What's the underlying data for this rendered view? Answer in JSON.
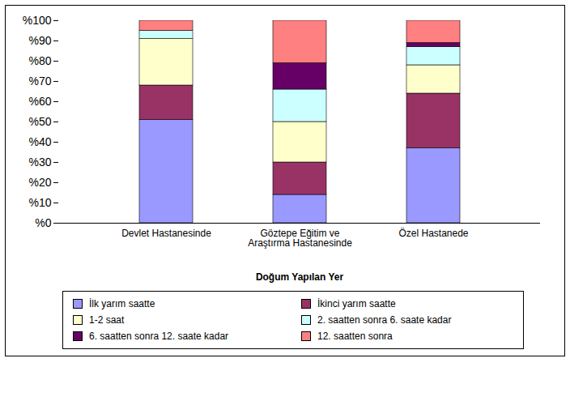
{
  "chart_data": {
    "type": "bar",
    "stacked": true,
    "legend": "bottom",
    "grid": false,
    "x_label": "Doğum Yapılan Yer",
    "categories": [
      "Devlet Hastanesinde",
      "Göztepe Eğitim ve Araştırma Hastanesinde",
      "Özel Hastanede"
    ],
    "ylim": [
      0,
      100
    ],
    "yticks": [
      {
        "value": 0,
        "label": "%0"
      },
      {
        "value": 10,
        "label": "%10"
      },
      {
        "value": 20,
        "label": "%20"
      },
      {
        "value": 30,
        "label": "%30"
      },
      {
        "value": 40,
        "label": "%40"
      },
      {
        "value": 50,
        "label": "%50"
      },
      {
        "value": 60,
        "label": "%60"
      },
      {
        "value": 70,
        "label": "%70"
      },
      {
        "value": 80,
        "label": "%80"
      },
      {
        "value": 90,
        "label": "%90"
      },
      {
        "value": 100,
        "label": "%100"
      }
    ],
    "series": [
      {
        "name": "İlk yarım saatte",
        "color": "#9999ff",
        "values": [
          51,
          14,
          37
        ]
      },
      {
        "name": "İkinci yarım saatte",
        "color": "#993366",
        "values": [
          17,
          16,
          27
        ]
      },
      {
        "name": "1-2 saat",
        "color": "#ffffcc",
        "values": [
          23,
          20,
          14
        ]
      },
      {
        "name": "2. saatten sonra 6. saate kadar",
        "color": "#ccffff",
        "values": [
          4,
          16,
          9
        ]
      },
      {
        "name": "6. saatten sonra 12. saate kadar",
        "color": "#660066",
        "values": [
          0,
          13,
          2
        ]
      },
      {
        "name": "12. saatten sonra",
        "color": "#ff8080",
        "values": [
          5,
          21,
          11
        ]
      }
    ]
  }
}
